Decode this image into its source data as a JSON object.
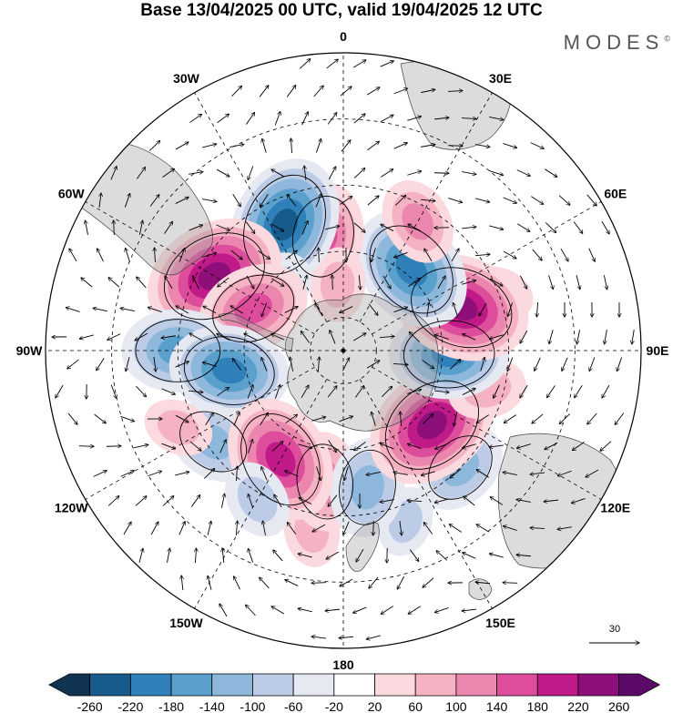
{
  "title": "Base 13/04/2025 00 UTC, valid 19/04/2025 12 UTC",
  "brand": "MODES",
  "brand_mark": "©",
  "longitude_labels": [
    {
      "text": "0",
      "angle": 0
    },
    {
      "text": "30E",
      "angle": 30
    },
    {
      "text": "60E",
      "angle": 60
    },
    {
      "text": "90E",
      "angle": 90
    },
    {
      "text": "120E",
      "angle": 120
    },
    {
      "text": "150E",
      "angle": 150
    },
    {
      "text": "180",
      "angle": 180
    },
    {
      "text": "150W",
      "angle": 210
    },
    {
      "text": "120W",
      "angle": 240
    },
    {
      "text": "90W",
      "angle": 270
    },
    {
      "text": "60W",
      "angle": 300
    },
    {
      "text": "30W",
      "angle": 330
    }
  ],
  "vector_reference": "30",
  "colorbar": {
    "ticks": [
      "-260",
      "-220",
      "-180",
      "-140",
      "-100",
      "-60",
      "-20",
      "20",
      "60",
      "100",
      "140",
      "180",
      "220",
      "260"
    ],
    "colors": [
      "#0f3350",
      "#155c8c",
      "#2f7fb8",
      "#5aa0cc",
      "#8db8dc",
      "#bccbe6",
      "#e6e8f2",
      "#ffffff",
      "#fadade",
      "#f4b2c2",
      "#eb86ae",
      "#de4d9b",
      "#c01a88",
      "#8e0f7a",
      "#5b0a68"
    ]
  },
  "anomalies": [
    {
      "lat": -35,
      "lon": 20,
      "value": -40
    },
    {
      "lat": -35,
      "lon": -10,
      "value": 50
    },
    {
      "lat": -50,
      "lon": -8,
      "value": 110
    },
    {
      "lat": -48,
      "lon": 10,
      "value": -110
    },
    {
      "lat": -40,
      "lon": 45,
      "value": -100
    },
    {
      "lat": -55,
      "lon": 50,
      "value": 200
    },
    {
      "lat": -45,
      "lon": 75,
      "value": 60
    },
    {
      "lat": -58,
      "lon": 88,
      "value": -160
    },
    {
      "lat": -40,
      "lon": 110,
      "value": 40
    },
    {
      "lat": -52,
      "lon": 110,
      "value": 200
    },
    {
      "lat": -58,
      "lon": 140,
      "value": -180
    },
    {
      "lat": -45,
      "lon": 150,
      "value": 80
    },
    {
      "lat": -55,
      "lon": 190,
      "value": 130
    },
    {
      "lat": -70,
      "lon": 185,
      "value": 50
    },
    {
      "lat": -48,
      "lon": 205,
      "value": -200
    },
    {
      "lat": -62,
      "lon": 228,
      "value": -70
    },
    {
      "lat": -45,
      "lon": 240,
      "value": 210
    },
    {
      "lat": -60,
      "lon": 245,
      "value": 140
    },
    {
      "lat": -40,
      "lon": 270,
      "value": -140
    },
    {
      "lat": -55,
      "lon": 280,
      "value": -160
    },
    {
      "lat": -42,
      "lon": 305,
      "value": -100
    },
    {
      "lat": -35,
      "lon": 295,
      "value": 40
    },
    {
      "lat": -52,
      "lon": 330,
      "value": 180
    },
    {
      "lat": -38,
      "lon": 330,
      "value": -60
    }
  ]
}
